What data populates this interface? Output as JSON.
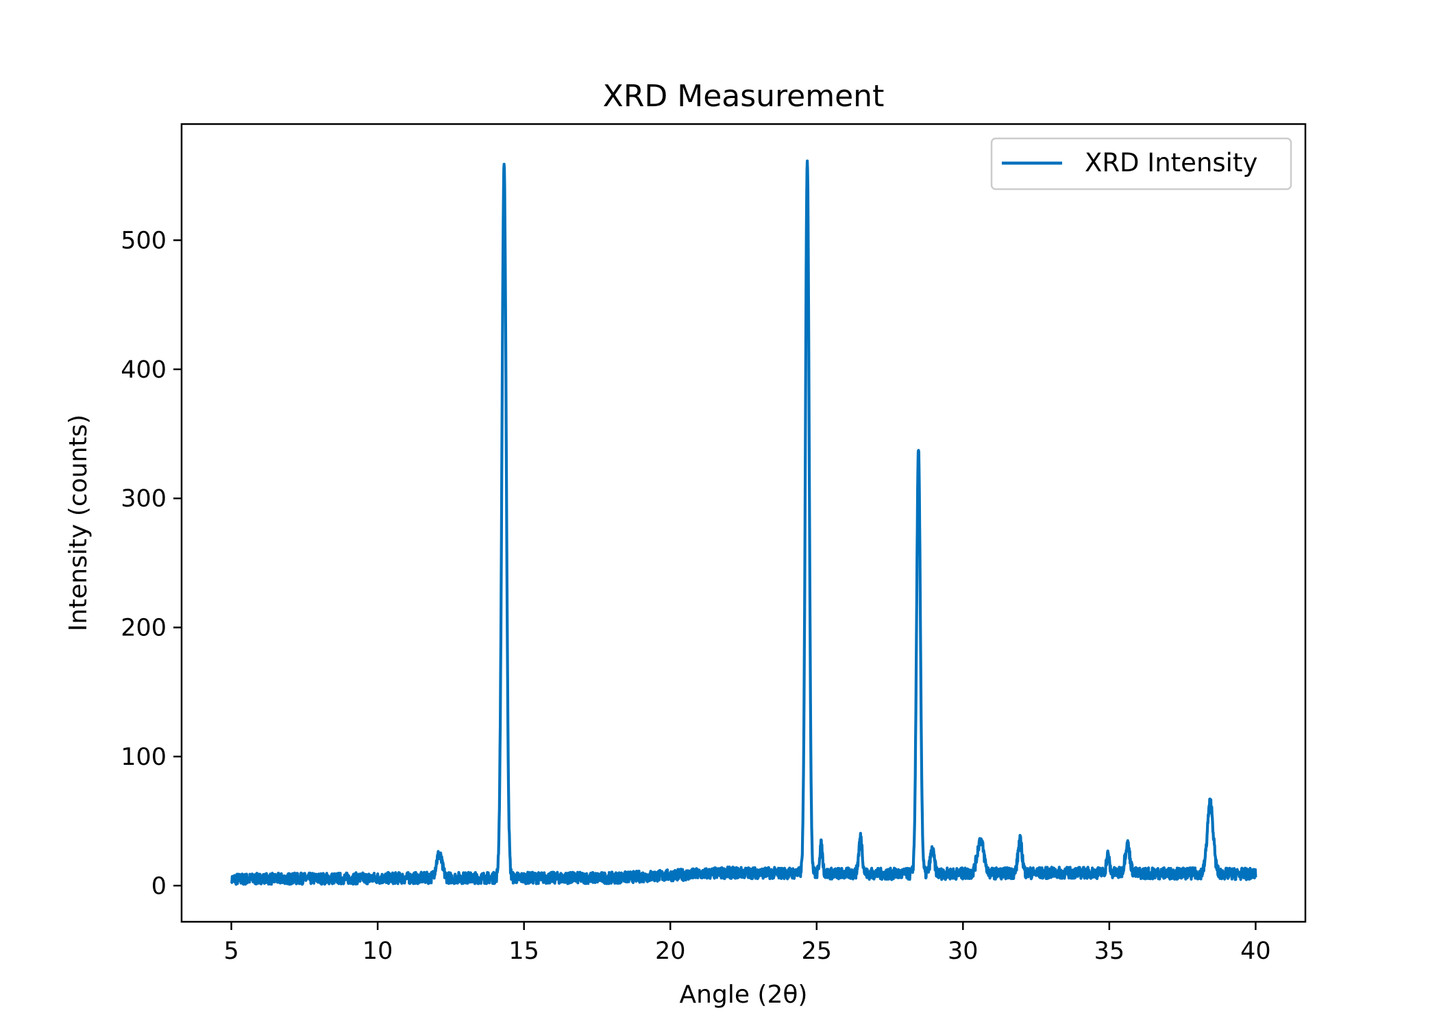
{
  "chart_data": {
    "type": "line",
    "title": "XRD Measurement",
    "xlabel": "Angle (2θ)",
    "ylabel": "Intensity (counts)",
    "xlim": [
      3.3,
      41.7
    ],
    "ylim": [
      -28,
      590
    ],
    "xticks": [
      5,
      10,
      15,
      20,
      25,
      30,
      35,
      40
    ],
    "yticks": [
      0,
      100,
      200,
      300,
      400,
      500
    ],
    "x_range": [
      5,
      40
    ],
    "color": "#0072bd",
    "grid": false,
    "legend": {
      "position": "top-right",
      "entries": [
        "XRD Intensity"
      ]
    },
    "series": [
      {
        "name": "XRD Intensity",
        "baseline": [
          [
            5,
            5
          ],
          [
            12,
            6
          ],
          [
            18,
            6
          ],
          [
            22,
            10
          ],
          [
            28,
            9
          ],
          [
            34,
            10
          ],
          [
            40,
            9
          ]
        ],
        "peaks": [
          {
            "center": 12.1,
            "height": 18,
            "width": 0.1
          },
          {
            "center": 14.32,
            "height": 550,
            "width": 0.075
          },
          {
            "center": 24.68,
            "height": 555,
            "width": 0.065
          },
          {
            "center": 25.15,
            "height": 22,
            "width": 0.05
          },
          {
            "center": 26.5,
            "height": 28,
            "width": 0.06
          },
          {
            "center": 28.48,
            "height": 327,
            "width": 0.065
          },
          {
            "center": 28.95,
            "height": 18,
            "width": 0.07
          },
          {
            "center": 30.6,
            "height": 26,
            "width": 0.11
          },
          {
            "center": 31.95,
            "height": 25,
            "width": 0.07
          },
          {
            "center": 34.95,
            "height": 14,
            "width": 0.05
          },
          {
            "center": 35.62,
            "height": 22,
            "width": 0.08
          },
          {
            "center": 38.45,
            "height": 55,
            "width": 0.1
          }
        ],
        "noise_amplitude": 9,
        "seed": 7
      }
    ]
  }
}
